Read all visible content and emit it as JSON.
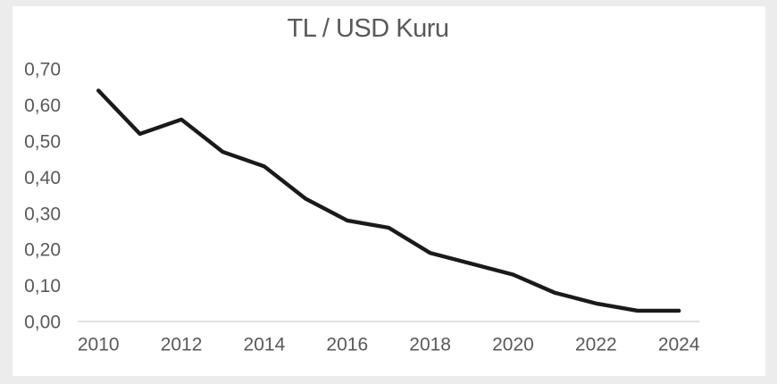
{
  "page": {
    "background_color": "#ececec",
    "card_color": "#ffffff"
  },
  "chart_data": {
    "type": "line",
    "title": "TL / USD Kuru",
    "xlabel": "",
    "ylabel": "",
    "legend": "none",
    "grid": false,
    "decimal_separator": ",",
    "categories": [
      "2010",
      "2011",
      "2012",
      "2013",
      "2014",
      "2015",
      "2016",
      "2017",
      "2018",
      "2019",
      "2020",
      "2021",
      "2022",
      "2023",
      "2024"
    ],
    "values": [
      0.64,
      0.52,
      0.56,
      0.47,
      0.43,
      0.34,
      0.28,
      0.26,
      0.19,
      0.16,
      0.13,
      0.08,
      0.05,
      0.03,
      0.03
    ],
    "x_tick_labels": [
      "2010",
      "2012",
      "2014",
      "2016",
      "2018",
      "2020",
      "2022",
      "2024"
    ],
    "y_tick_labels": [
      "0,00",
      "0,10",
      "0,20",
      "0,30",
      "0,40",
      "0,50",
      "0,60",
      "0,70"
    ],
    "y_tick_values": [
      0.0,
      0.1,
      0.2,
      0.3,
      0.4,
      0.5,
      0.6,
      0.7
    ],
    "ylim": [
      0.0,
      0.7
    ],
    "line_color": "#1a1a1a",
    "axis_line_color": "#d9d9d9",
    "tick_label_color": "#595959",
    "title_color": "#595959"
  }
}
